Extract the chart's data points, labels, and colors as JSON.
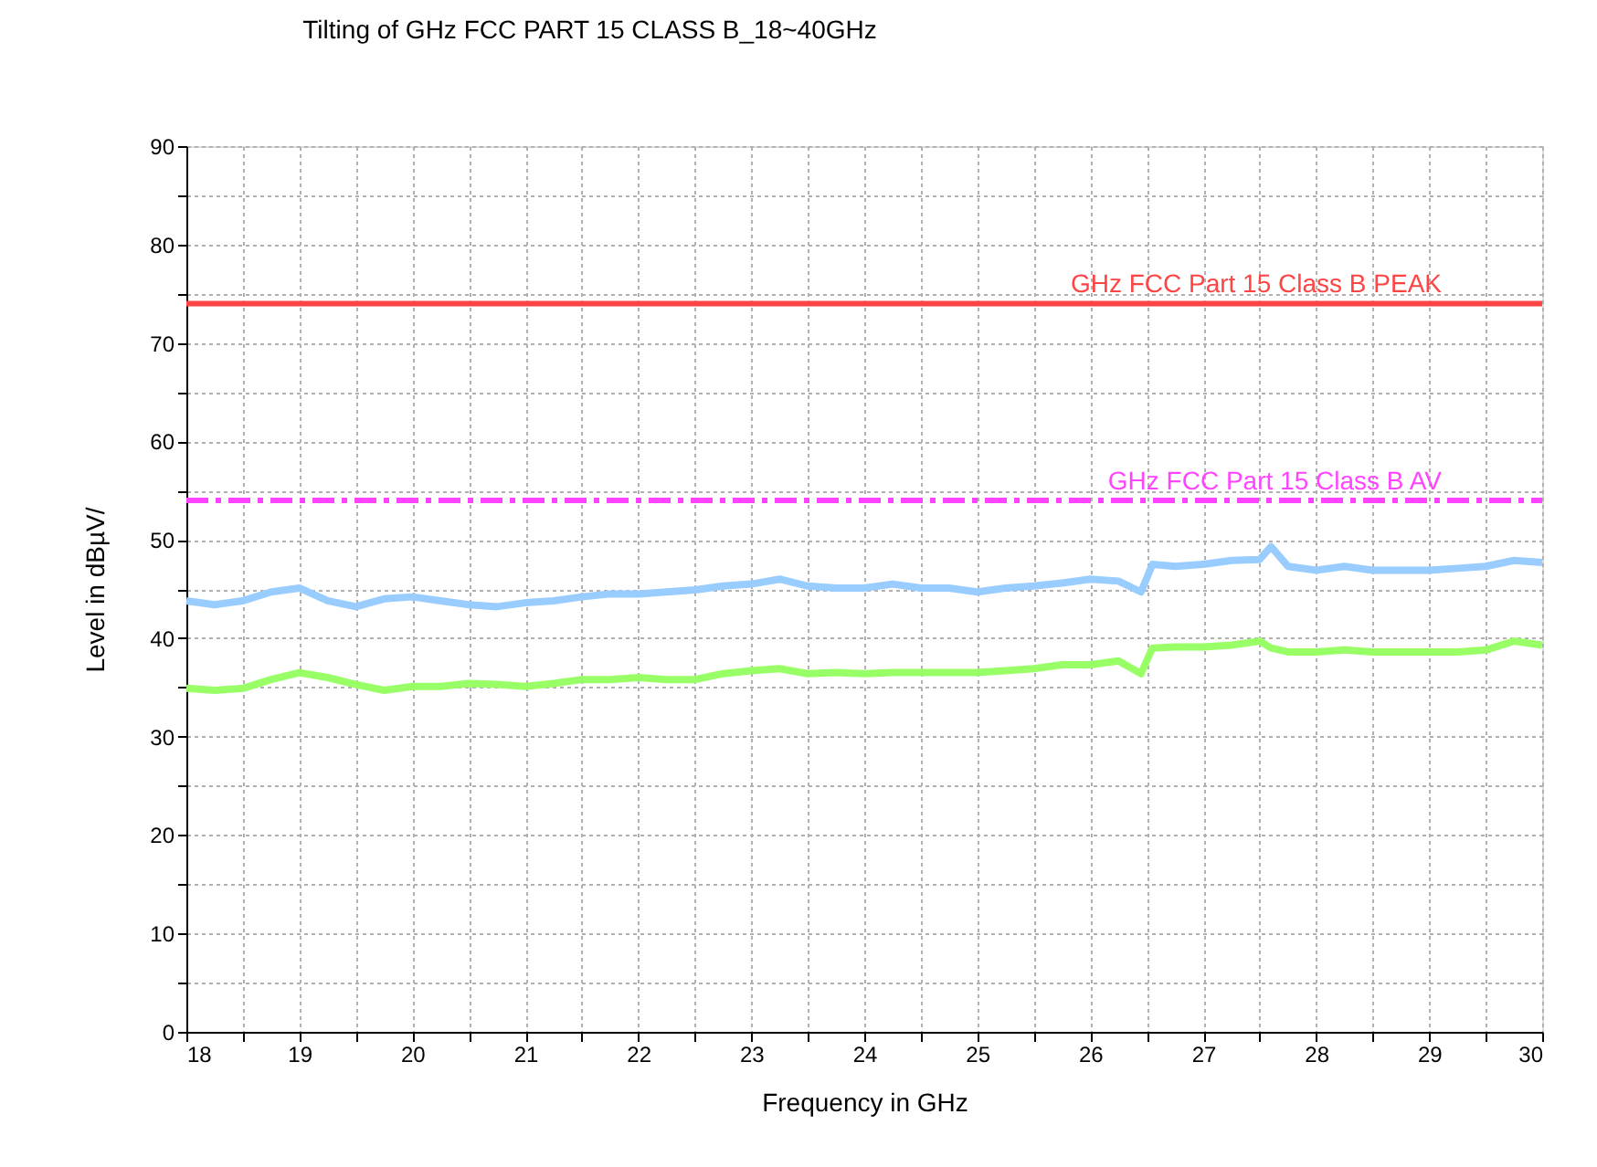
{
  "chart_data": {
    "type": "line",
    "title": "Tilting of GHz FCC PART 15 CLASS B_18~40GHz",
    "xlabel": "Frequency in  GHz",
    "ylabel": "Level in dBµV/",
    "xlim": [
      18,
      30
    ],
    "ylim": [
      0,
      90
    ],
    "xticks": [
      18,
      {
        "value": 18.5,
        "label": null
      },
      19,
      {
        "value": 19.5,
        "label": null
      },
      20,
      {
        "value": 20.5,
        "label": null
      },
      21,
      {
        "value": 21.5,
        "label": null
      },
      22,
      {
        "value": 22.5,
        "label": null
      },
      23,
      {
        "value": 23.5,
        "label": null
      },
      24,
      {
        "value": 24.5,
        "label": null
      },
      25,
      {
        "value": 25.5,
        "label": null
      },
      26,
      {
        "value": 26.5,
        "label": null
      },
      27,
      {
        "value": 27.5,
        "label": null
      },
      28,
      {
        "value": 28.5,
        "label": null
      },
      29,
      {
        "value": 29.5,
        "label": null
      },
      30
    ],
    "yticks": [
      0,
      {
        "value": 5,
        "label": null
      },
      10,
      {
        "value": 15,
        "label": null
      },
      20,
      {
        "value": 25,
        "label": null
      },
      30,
      {
        "value": 35,
        "label": null
      },
      40,
      {
        "value": 45,
        "label": null
      },
      50,
      {
        "value": 55,
        "label": null
      },
      60,
      {
        "value": 65,
        "label": null
      },
      70,
      {
        "value": 75,
        "label": null
      },
      80,
      {
        "value": 85,
        "label": null
      },
      90
    ],
    "grid": true,
    "line_style": "solid",
    "marker": "none",
    "x": [
      18,
      18.25,
      18.5,
      18.75,
      19,
      19.25,
      19.5,
      19.75,
      20,
      20.25,
      20.5,
      20.75,
      21,
      21.25,
      21.5,
      21.75,
      22,
      22.25,
      22.5,
      22.75,
      23,
      23.25,
      23.5,
      23.75,
      24,
      24.25,
      24.5,
      24.75,
      25,
      25.25,
      25.5,
      25.75,
      26,
      26.25,
      26.45,
      26.55,
      26.75,
      27,
      27.25,
      27.5,
      27.6,
      27.75,
      28,
      28.25,
      28.5,
      28.75,
      29,
      29.25,
      29.5,
      29.75,
      30
    ],
    "series": [
      {
        "color": "#99ccff",
        "values": [
          43.8,
          43.4,
          43.8,
          44.7,
          45.1,
          43.8,
          43.2,
          44.0,
          44.2,
          43.8,
          43.4,
          43.2,
          43.6,
          43.8,
          44.2,
          44.5,
          44.5,
          44.7,
          44.9,
          45.3,
          45.5,
          46.0,
          45.3,
          45.1,
          45.1,
          45.5,
          45.1,
          45.1,
          44.7,
          45.1,
          45.3,
          45.6,
          46.0,
          45.8,
          44.7,
          47.5,
          47.3,
          47.5,
          47.9,
          48.0,
          49.3,
          47.3,
          46.9,
          47.3,
          46.9,
          46.9,
          46.9,
          47.1,
          47.3,
          47.9,
          47.7
        ]
      },
      {
        "color": "#99ff66",
        "values": [
          34.9,
          34.7,
          34.9,
          35.8,
          36.5,
          36.0,
          35.3,
          34.7,
          35.1,
          35.1,
          35.4,
          35.3,
          35.1,
          35.4,
          35.8,
          35.8,
          36.0,
          35.8,
          35.8,
          36.4,
          36.7,
          36.9,
          36.4,
          36.5,
          36.4,
          36.5,
          36.5,
          36.5,
          36.5,
          36.7,
          36.9,
          37.3,
          37.3,
          37.7,
          36.4,
          39.0,
          39.1,
          39.1,
          39.3,
          39.7,
          39.0,
          38.6,
          38.6,
          38.8,
          38.6,
          38.6,
          38.6,
          38.6,
          38.8,
          39.7,
          39.3
        ]
      }
    ],
    "ref_lines": [
      {
        "axis": "y",
        "value": 74,
        "label": "GHz  FCC Part 15  Class B PEAK",
        "color": "#ff4444",
        "line_style": "solid"
      },
      {
        "axis": "y",
        "value": 54,
        "label": "GHz  FCC Part 15  Class B AV",
        "color": "#ff44ff",
        "line_style": "dashed"
      }
    ]
  }
}
